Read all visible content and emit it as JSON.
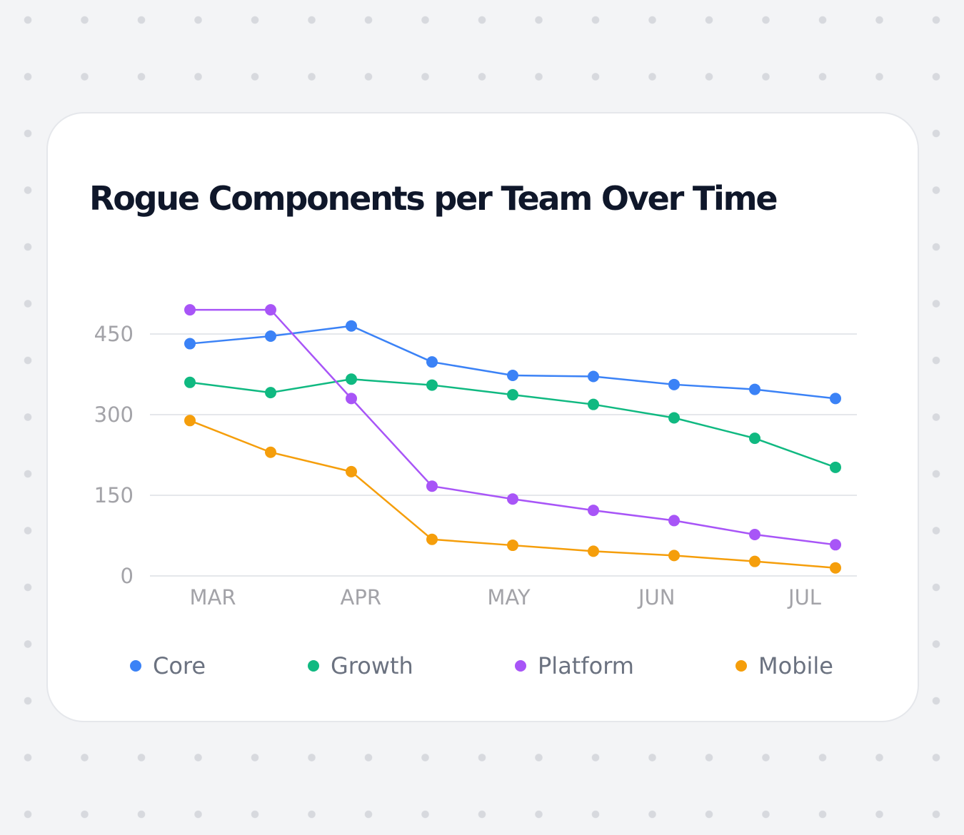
{
  "chart_data": {
    "type": "line",
    "title": "Rogue Components per Team Over Time",
    "xlabel": "",
    "ylabel": "",
    "x_ticks": [
      "MAR",
      "APR",
      "MAY",
      "JUN",
      "JUL"
    ],
    "y_ticks": [
      0,
      150,
      300,
      450
    ],
    "ylim": [
      0,
      450
    ],
    "points_per_series": 9,
    "grid": true,
    "legend_position": "bottom",
    "series": [
      {
        "name": "Core",
        "color": "#3b82f6",
        "values": [
          432,
          446,
          465,
          398,
          373,
          371,
          356,
          347,
          330
        ]
      },
      {
        "name": "Growth",
        "color": "#10b981",
        "values": [
          360,
          341,
          366,
          355,
          337,
          319,
          294,
          256,
          202
        ]
      },
      {
        "name": "Platform",
        "color": "#a855f7",
        "values": [
          495,
          495,
          330,
          167,
          143,
          122,
          103,
          77,
          58
        ]
      },
      {
        "name": "Mobile",
        "color": "#f59e0b",
        "values": [
          289,
          230,
          194,
          68,
          57,
          46,
          38,
          27,
          15
        ]
      }
    ]
  }
}
